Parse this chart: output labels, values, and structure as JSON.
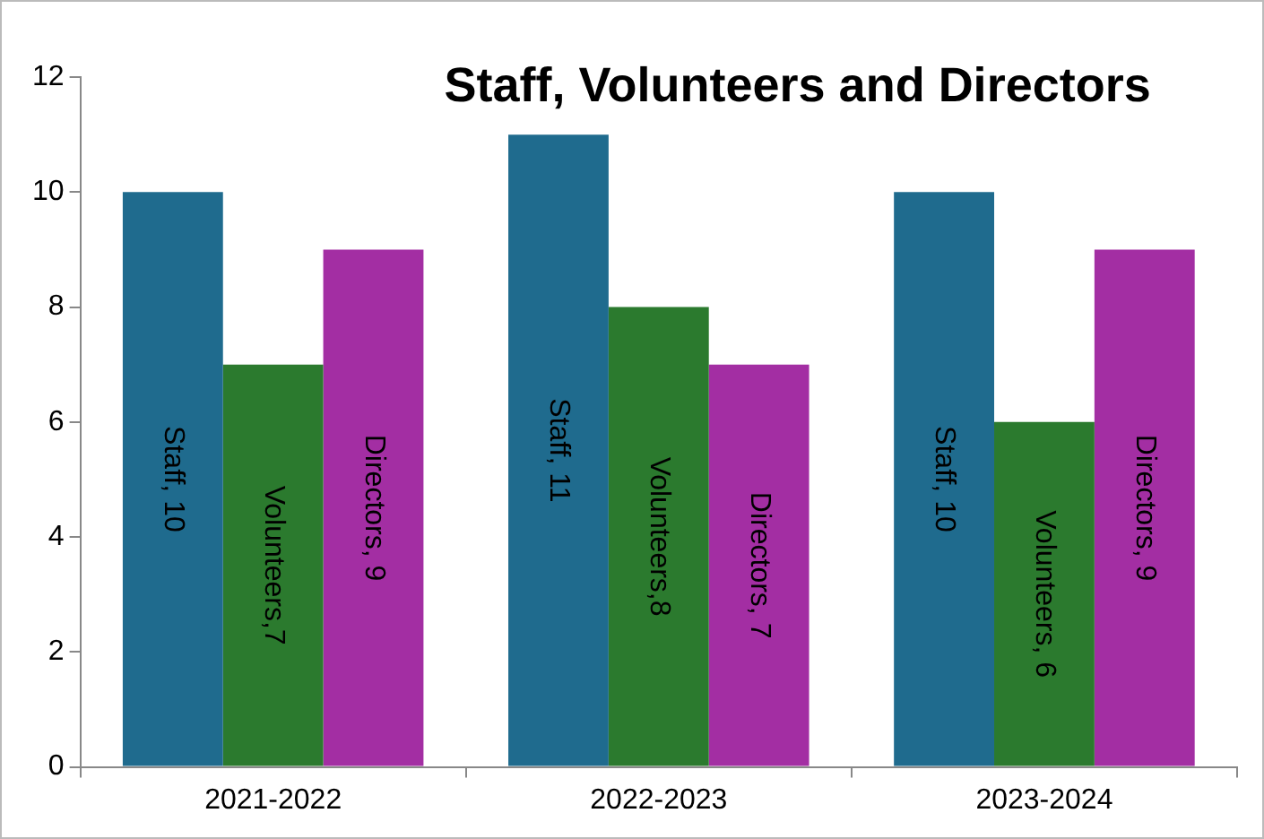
{
  "chart_data": {
    "type": "bar",
    "title": "Staff, Volunteers and Directors",
    "categories": [
      "2021-2022",
      "2022-2023",
      "2023-2024"
    ],
    "series": [
      {
        "color": "#1f6b8e",
        "values": [
          10,
          11,
          10
        ],
        "value_labels": [
          "Staff, 10",
          "Staff, 11",
          "Staff, 10"
        ]
      },
      {
        "color": "#2b7a2e",
        "values": [
          7,
          8,
          6
        ],
        "value_labels": [
          "Volunteers,7",
          "Volunteers,8",
          "Volunteers, 6"
        ]
      },
      {
        "color": "#a32ea3",
        "values": [
          9,
          7,
          9
        ],
        "value_labels": [
          "Directors, 9",
          "Directors, 7",
          "Directors, 9"
        ]
      }
    ],
    "ylim": [
      0,
      12
    ],
    "yticks": [
      0,
      2,
      4,
      6,
      8,
      10,
      12
    ],
    "grid": false,
    "legend": false
  }
}
